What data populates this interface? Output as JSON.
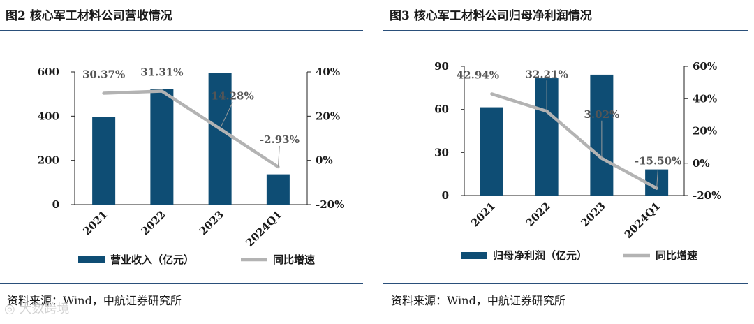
{
  "figures": [
    {
      "title": "图2  核心军工材料公司营收情况",
      "source": "资料来源：Wind，中航证券研究所",
      "chart_data": {
        "type": "bar",
        "categories": [
          "2021",
          "2022",
          "2023",
          "2024Q1"
        ],
        "series": [
          {
            "name": "营业收入（亿元）",
            "type": "bar",
            "axis": "left",
            "values": [
              397,
              522,
              596,
              137
            ]
          },
          {
            "name": "同比增速",
            "type": "line",
            "axis": "right",
            "values": [
              30.37,
              31.31,
              14.28,
              -2.93
            ],
            "labels": [
              "30.37%",
              "31.31%",
              "14.28%",
              "-2.93%"
            ]
          }
        ],
        "y_left": {
          "ticks": [
            "0",
            "200",
            "400",
            "600"
          ],
          "range": [
            0,
            600
          ]
        },
        "y_right": {
          "ticks": [
            "-20%",
            "0%",
            "20%",
            "40%"
          ],
          "range": [
            -20,
            40
          ]
        },
        "legend_position": "bottom",
        "colors": {
          "bar": "#0e4d74",
          "line": "#b3b3b3"
        }
      }
    },
    {
      "title": "图3  核心军工材料公司归母净利润情况",
      "source": "资料来源：Wind，中航证券研究所",
      "chart_data": {
        "type": "bar",
        "categories": [
          "2021",
          "2022",
          "2023",
          "2024Q1"
        ],
        "series": [
          {
            "name": "归母净利润（亿元）",
            "type": "bar",
            "axis": "left",
            "values": [
              61.5,
              81.7,
              84.2,
              18.2
            ]
          },
          {
            "name": "同比增速",
            "type": "line",
            "axis": "right",
            "values": [
              42.94,
              32.21,
              3.02,
              -15.5
            ],
            "labels": [
              "42.94%",
              "32.21%",
              "3.02%",
              "-15.50%"
            ]
          }
        ],
        "y_left": {
          "ticks": [
            "0",
            "30",
            "60",
            "90"
          ],
          "range": [
            0,
            90
          ]
        },
        "y_right": {
          "ticks": [
            "-20%",
            "0%",
            "20%",
            "40%",
            "60%"
          ],
          "range": [
            -20,
            60
          ]
        },
        "legend_position": "bottom",
        "colors": {
          "bar": "#0e4d74",
          "line": "#b3b3b3"
        }
      }
    }
  ],
  "watermark": "大数跨境"
}
